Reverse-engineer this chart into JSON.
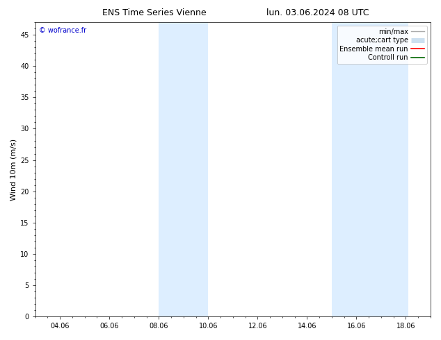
{
  "title_left": "ENS Time Series Vienne",
  "title_right": "lun. 03.06.2024 08 UTC",
  "ylabel": "Wind 10m (m/s)",
  "watermark": "© wofrance.fr",
  "watermark_color": "#0000cc",
  "ylim": [
    0,
    47
  ],
  "yticks": [
    0,
    5,
    10,
    15,
    20,
    25,
    30,
    35,
    40,
    45
  ],
  "xtick_labels": [
    "04.06",
    "06.06",
    "08.06",
    "10.06",
    "12.06",
    "14.06",
    "16.06",
    "18.06"
  ],
  "xtick_positions": [
    4,
    6,
    8,
    10,
    12,
    14,
    16,
    18
  ],
  "xlim": [
    3.0,
    19.0
  ],
  "shaded_bands": [
    {
      "xmin": 8.0,
      "xmax": 10.0
    },
    {
      "xmin": 15.0,
      "xmax": 18.1
    }
  ],
  "band_color": "#ddeeff",
  "legend_entries": [
    {
      "label": "min/max",
      "color": "#aaaaaa",
      "lw": 1.0
    },
    {
      "label": "acute;cart type",
      "color": "#cce0f0",
      "lw": 5
    },
    {
      "label": "Ensemble mean run",
      "color": "#ff0000",
      "lw": 1.2
    },
    {
      "label": "Controll run",
      "color": "#006600",
      "lw": 1.2
    }
  ],
  "background_color": "#ffffff",
  "title_fontsize": 9,
  "label_fontsize": 8,
  "tick_fontsize": 7,
  "watermark_fontsize": 7,
  "legend_fontsize": 7
}
